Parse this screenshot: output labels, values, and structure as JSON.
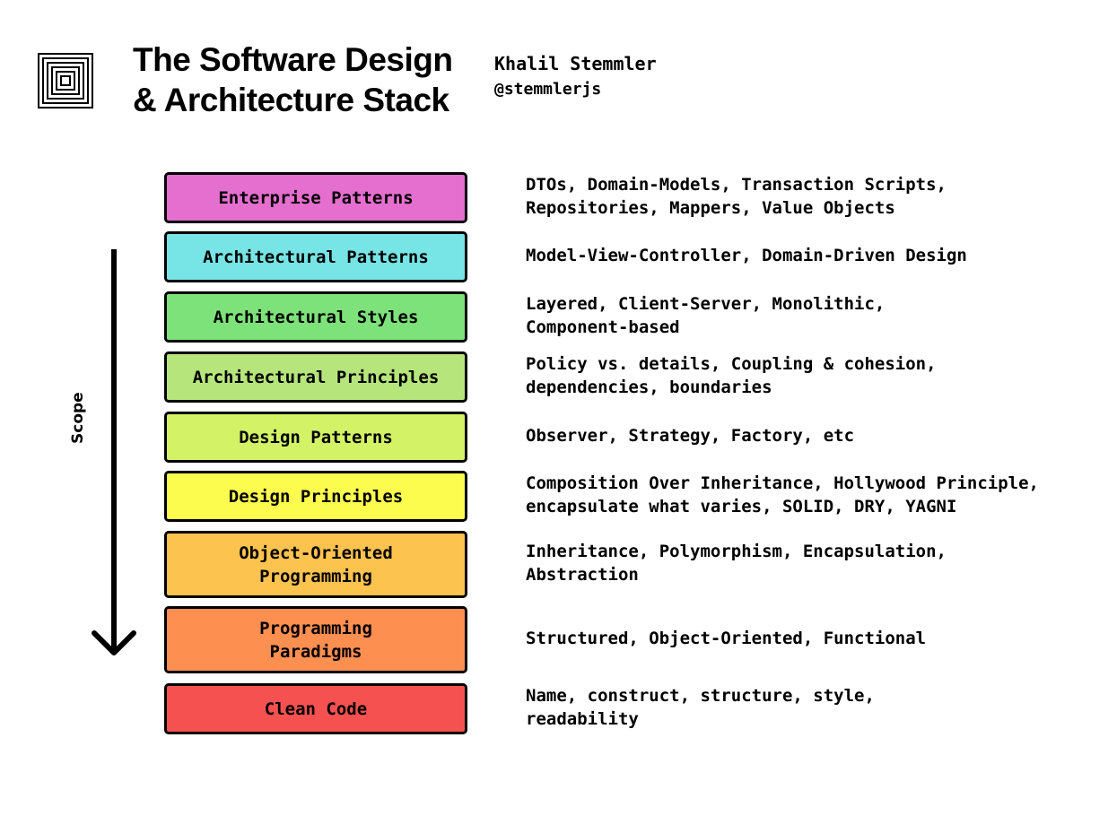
{
  "header": {
    "title_line1": "The Software Design",
    "title_line2": "& Architecture Stack",
    "author": "Khalil Stemmler",
    "handle": "@stemmlerjs"
  },
  "scope": {
    "label": "Scope"
  },
  "layers": [
    {
      "label": "Enterprise Patterns",
      "color": "#e56fcf",
      "description": "DTOs, Domain-Models, Transaction Scripts,\nRepositories, Mappers, Value Objects"
    },
    {
      "label": "Architectural Patterns",
      "color": "#77e4e6",
      "description": "Model-View-Controller, Domain-Driven Design"
    },
    {
      "label": "Architectural Styles",
      "color": "#7ee27b",
      "description": "Layered, Client-Server, Monolithic,\nComponent-based"
    },
    {
      "label": "Architectural Principles",
      "color": "#b6e57c",
      "description": "Policy vs. details, Coupling & cohesion,\ndependencies, boundaries"
    },
    {
      "label": "Design Patterns",
      "color": "#d4f266",
      "description": "Observer, Strategy, Factory, etc"
    },
    {
      "label": "Design Principles",
      "color": "#fcfc4e",
      "description": "Composition Over Inheritance, Hollywood Principle,\nencapsulate what varies, SOLID, DRY, YAGNI"
    },
    {
      "label": "Object-Oriented\nProgramming",
      "color": "#fdc34f",
      "description": "Inheritance, Polymorphism, Encapsulation,\nAbstraction"
    },
    {
      "label": "Programming\nParadigms",
      "color": "#fd8f51",
      "description": "Structured, Object-Oriented, Functional"
    },
    {
      "label": "Clean Code",
      "color": "#f65151",
      "description": "Name, construct, structure, style,\nreadability"
    }
  ]
}
